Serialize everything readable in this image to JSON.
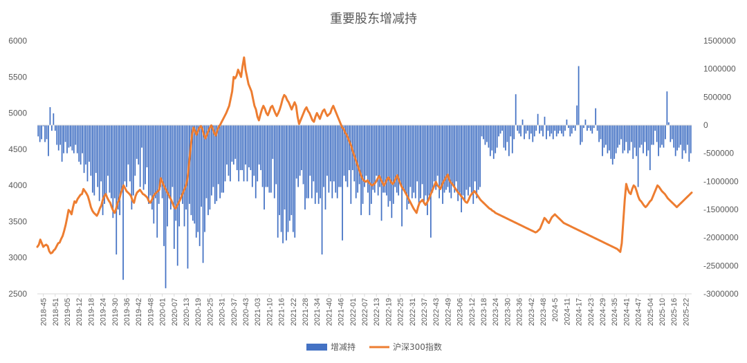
{
  "chart_data": {
    "type": "bar+line",
    "title": "重要股东增减持",
    "legend_position": "bottom",
    "grid": false,
    "y_left": {
      "min": 2500,
      "max": 6000,
      "step": 500
    },
    "y_right": {
      "min": -3000000,
      "max": 1500000,
      "step": 500000
    },
    "x_tick_labels": [
      "2018-45",
      "2018-51",
      "2019-05",
      "2019-12",
      "2019-18",
      "2019-24",
      "2019-30",
      "2019-36",
      "2019-42",
      "2019-48",
      "2020-01",
      "2020-07",
      "2020-13",
      "2020-19",
      "2020-25",
      "2020-31",
      "2020-37",
      "2020-43",
      "2021-03",
      "2021-10",
      "2021-16",
      "2021-22",
      "2021-28",
      "2021-34",
      "2021-40",
      "2021-46",
      "2022-01",
      "2022-07",
      "2022-13",
      "2022-19",
      "2022-25",
      "2022-31",
      "2022-37",
      "2022-43",
      "2022-49",
      "2023-06",
      "2023-12",
      "2023-18",
      "2023-24",
      "2023-30",
      "2023-36",
      "2023-42",
      "2023-48",
      "2024-5",
      "2024-11",
      "2024-17",
      "2024-23",
      "2024-29",
      "2024-35",
      "2024-41",
      "2024-47",
      "2025-04",
      "2025-10",
      "2025-16",
      "2025-22"
    ],
    "series": [
      {
        "name": "增减持",
        "type": "bar",
        "axis": "right",
        "color": "#4472C4",
        "values": [
          -200000,
          -300000,
          -250000,
          -20000,
          -300000,
          -250000,
          -550000,
          320000,
          -100000,
          210000,
          -100000,
          -350000,
          -450000,
          -350000,
          -650000,
          -500000,
          -300000,
          -500000,
          -400000,
          -380000,
          -450000,
          -500000,
          -350000,
          -500000,
          -650000,
          -700000,
          -500000,
          -850000,
          -700000,
          -1000000,
          -650000,
          -900000,
          -1200000,
          -1250000,
          -850000,
          -1100000,
          -1350000,
          -1000000,
          -1600000,
          -1400000,
          -1250000,
          -900000,
          -1200000,
          -1300000,
          -1650000,
          -1300000,
          -2300000,
          -1500000,
          -1600000,
          -1200000,
          -2750000,
          -1000000,
          -1100000,
          -700000,
          -1000000,
          -1500000,
          -1250000,
          -900000,
          -600000,
          -700000,
          -1100000,
          -400000,
          -1150000,
          -1050000,
          -750000,
          -1400000,
          -1250000,
          -1500000,
          -1750000,
          -1300000,
          -2000000,
          -1400000,
          -1100000,
          -1300000,
          -2150000,
          -2900000,
          -1800000,
          -1300000,
          -1500000,
          -1100000,
          -2200000,
          -1700000,
          -2500000,
          -1800000,
          -1250000,
          -1400000,
          -1800000,
          -1500000,
          -2550000,
          -1400000,
          -1600000,
          -1700000,
          -1750000,
          -2000000,
          -1900000,
          -2150000,
          -1450000,
          -2450000,
          -1900000,
          -1300000,
          -1600000,
          -1500000,
          -1250000,
          -1100000,
          -1400000,
          -1350000,
          -1050000,
          -1300000,
          -1200000,
          -1200000,
          -1000000,
          -700000,
          -900000,
          -1000000,
          -650000,
          -700000,
          -600000,
          -800000,
          -1000000,
          -800000,
          -800000,
          -1000000,
          -700000,
          -1000000,
          -750000,
          -800000,
          -1100000,
          -900000,
          -1300000,
          -1000000,
          -700000,
          -800000,
          -1100000,
          -1500000,
          -1100000,
          -1100000,
          -1200000,
          -1200000,
          -600000,
          -1300000,
          -1050000,
          -2000000,
          -1600000,
          -1900000,
          -2100000,
          -1500000,
          -2050000,
          -1900000,
          -1700000,
          -1600000,
          -1900000,
          -2000000,
          -950000,
          -1100000,
          -900000,
          -800000,
          -1050000,
          -1500000,
          -1300000,
          -1300000,
          -900000,
          -1300000,
          -1000000,
          -1400000,
          -1200000,
          -1400000,
          -1300000,
          -2300000,
          -1100000,
          -1500000,
          -900000,
          -1200000,
          -1000000,
          -1300000,
          -1000000,
          -1200000,
          -1300000,
          -1100000,
          -1100000,
          -2050000,
          -900000,
          -1000000,
          -1100000,
          -800000,
          -1400000,
          -800000,
          -1000000,
          -1300000,
          -1200000,
          -1050000,
          -1600000,
          -1400000,
          -1100000,
          -900000,
          -1200000,
          -1600000,
          -1400000,
          -1150000,
          -1200000,
          -900000,
          -1250000,
          -1100000,
          -1700000,
          -1200000,
          -1200000,
          -1250000,
          -1450000,
          -1350000,
          -1650000,
          -1400000,
          -1100000,
          -1200000,
          -1250000,
          -1050000,
          -1800000,
          -1150000,
          -1200000,
          -1500000,
          -1400000,
          -1100000,
          -1300000,
          -1200000,
          -1300000,
          -1000000,
          -1400000,
          -1300000,
          -1050000,
          -1400000,
          -1250000,
          -1600000,
          -1250000,
          -2000000,
          -1200000,
          -1000000,
          -1150000,
          -900000,
          -1300000,
          -1100000,
          -1400000,
          -1200000,
          -1150000,
          -1100000,
          -1200000,
          -1300000,
          -1050000,
          -1200000,
          -1000000,
          -1350000,
          -1200000,
          -1550000,
          -1250000,
          -1350000,
          -1150000,
          -1250000,
          -1100000,
          -1200000,
          -1400000,
          -1000000,
          -1300000,
          -1150000,
          -1100000,
          -200000,
          -250000,
          -350000,
          -300000,
          -400000,
          -550000,
          -450000,
          -600000,
          -500000,
          -400000,
          -200000,
          -150000,
          -100000,
          -400000,
          -450000,
          -300000,
          -550000,
          -200000,
          -500000,
          -250000,
          550000,
          -100000,
          -150000,
          -200000,
          100000,
          -250000,
          -150000,
          -100000,
          -250000,
          -150000,
          -300000,
          -200000,
          -100000,
          200000,
          -150000,
          -100000,
          -200000,
          150000,
          -250000,
          -100000,
          -200000,
          -150000,
          -250000,
          -100000,
          -200000,
          -150000,
          -100000,
          -150000,
          -200000,
          -100000,
          100000,
          -50000,
          -200000,
          -150000,
          -50000,
          -100000,
          350000,
          1050000,
          -350000,
          -300000,
          -50000,
          100000,
          -100000,
          -50000,
          -100000,
          -150000,
          -50000,
          300000,
          -100000,
          -300000,
          -250000,
          -550000,
          -400000,
          -350000,
          -500000,
          -450000,
          -600000,
          -700000,
          -600000,
          -500000,
          -400000,
          -350000,
          -250000,
          -500000,
          -450000,
          -300000,
          -500000,
          -450000,
          -300000,
          -600000,
          -400000,
          -550000,
          -1100000,
          -400000,
          -350000,
          -500000,
          -300000,
          -550000,
          -450000,
          -800000,
          -350000,
          -350000,
          -100000,
          -300000,
          -550000,
          -400000,
          -350000,
          -400000,
          -250000,
          600000,
          50000,
          -300000,
          -250000,
          -400000,
          -550000,
          -450000,
          -400000,
          -350000,
          -600000,
          -450000,
          -500000,
          -350000,
          -650000,
          -500000
        ]
      },
      {
        "name": "沪深300指数",
        "type": "line",
        "axis": "left",
        "color": "#ED7D31",
        "values": [
          3150,
          3180,
          3250,
          3200,
          3150,
          3170,
          3180,
          3160,
          3090,
          3060,
          3070,
          3100,
          3120,
          3160,
          3200,
          3210,
          3260,
          3300,
          3370,
          3450,
          3550,
          3660,
          3640,
          3600,
          3700,
          3780,
          3760,
          3810,
          3840,
          3870,
          3880,
          3950,
          3920,
          3890,
          3850,
          3780,
          3700,
          3650,
          3620,
          3600,
          3580,
          3620,
          3680,
          3720,
          3800,
          3850,
          3880,
          3830,
          3790,
          3760,
          3700,
          3650,
          3620,
          3680,
          3760,
          3800,
          3880,
          3940,
          4000,
          3960,
          3920,
          3900,
          3880,
          3850,
          3790,
          3760,
          3850,
          3900,
          3920,
          3940,
          3910,
          3880,
          3870,
          3850,
          3830,
          3780,
          3760,
          3800,
          3850,
          3880,
          3900,
          3920,
          3940,
          4100,
          4050,
          4000,
          3960,
          3920,
          3880,
          3840,
          3800,
          3750,
          3700,
          3680,
          3720,
          3760,
          3800,
          3850,
          3900,
          3950,
          4000,
          4100,
          4300,
          4500,
          4700,
          4800,
          4750,
          4700,
          4750,
          4800,
          4820,
          4780,
          4700,
          4650,
          4700,
          4750,
          4800,
          4830,
          4780,
          4720,
          4690,
          4760,
          4810,
          4840,
          4880,
          4920,
          4960,
          5000,
          5050,
          5100,
          5200,
          5300,
          5500,
          5480,
          5520,
          5600,
          5550,
          5500,
          5650,
          5770,
          5600,
          5500,
          5400,
          5350,
          5300,
          5200,
          5100,
          5050,
          4950,
          4900,
          4980,
          5050,
          5100,
          5060,
          5000,
          4970,
          5020,
          5080,
          5100,
          5050,
          5000,
          4960,
          5000,
          5050,
          5120,
          5200,
          5250,
          5230,
          5180,
          5150,
          5100,
          5050,
          5100,
          5150,
          5100,
          4950,
          4850,
          4900,
          4950,
          5000,
          5050,
          5080,
          5030,
          5000,
          4950,
          4900,
          4880,
          4950,
          5000,
          4960,
          4920,
          4980,
          5030,
          5050,
          5000,
          4960,
          4980,
          5000,
          5060,
          5100,
          5050,
          5000,
          4950,
          4900,
          4850,
          4800,
          4780,
          4730,
          4700,
          4650,
          4600,
          4550,
          4480,
          4420,
          4360,
          4300,
          4240,
          4180,
          4120,
          4080,
          4060,
          4050,
          4070,
          4040,
          4020,
          4000,
          4010,
          4030,
          4060,
          4100,
          4130,
          4080,
          4040,
          4000,
          4030,
          4080,
          4110,
          4080,
          4040,
          4020,
          4050,
          4100,
          4140,
          4080,
          4030,
          3980,
          3950,
          3920,
          3880,
          3840,
          3800,
          3760,
          3720,
          3680,
          3650,
          3620,
          3700,
          3760,
          3780,
          3800,
          3760,
          3730,
          3760,
          3800,
          3850,
          3900,
          3950,
          4000,
          4050,
          4000,
          3980,
          3950,
          4000,
          4050,
          4080,
          4120,
          4150,
          4080,
          4040,
          4020,
          3990,
          3960,
          3930,
          3900,
          3880,
          3850,
          3830,
          3800,
          3770,
          3760,
          3800,
          3850,
          3880,
          3900,
          3920,
          3890,
          3860,
          3830,
          3800,
          3780,
          3760,
          3740,
          3720,
          3700,
          3680,
          3670,
          3650,
          3640,
          3620,
          3610,
          3600,
          3590,
          3580,
          3570,
          3560,
          3550,
          3540,
          3530,
          3520,
          3510,
          3500,
          3490,
          3480,
          3470,
          3460,
          3450,
          3440,
          3430,
          3420,
          3410,
          3400,
          3390,
          3380,
          3370,
          3360,
          3350,
          3360,
          3380,
          3400,
          3450,
          3500,
          3550,
          3530,
          3500,
          3480,
          3520,
          3560,
          3580,
          3600,
          3580,
          3560,
          3540,
          3520,
          3500,
          3480,
          3470,
          3460,
          3450,
          3440,
          3430,
          3420,
          3410,
          3400,
          3390,
          3380,
          3370,
          3360,
          3350,
          3340,
          3330,
          3320,
          3310,
          3300,
          3290,
          3280,
          3270,
          3260,
          3250,
          3240,
          3230,
          3220,
          3210,
          3200,
          3190,
          3180,
          3170,
          3160,
          3150,
          3140,
          3130,
          3120,
          3100,
          3080,
          3200,
          3500,
          3800,
          4020,
          3950,
          3900,
          3880,
          3950,
          4000,
          3980,
          3920,
          3850,
          3800,
          3780,
          3750,
          3720,
          3700,
          3720,
          3750,
          3780,
          3800,
          3850,
          3900,
          3950,
          4000,
          3980,
          3950,
          3920,
          3900,
          3880,
          3850,
          3820,
          3800,
          3780,
          3760,
          3740,
          3720,
          3700,
          3720,
          3740,
          3760,
          3780,
          3800,
          3820,
          3840,
          3860,
          3880,
          3900
        ]
      }
    ]
  }
}
